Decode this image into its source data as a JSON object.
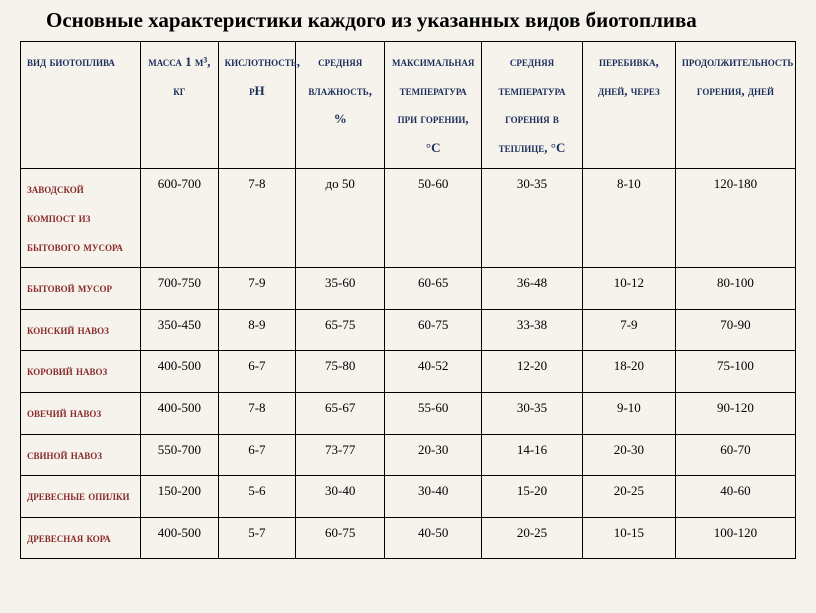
{
  "title": "Основные характеристики каждого из указанных видов биотоплива",
  "columns": [
    "вид биотоплива",
    "масса 1 м³, кг",
    "кислотность, pH",
    "средняя влажность, %",
    "максимальная температура при горении, °C",
    "средняя температура горения в теплице, °C",
    "перебивка, дней, через",
    "продолжительность горения, дней"
  ],
  "rows": [
    {
      "label": "заводской компост из бытового мусора",
      "cells": [
        "600-700",
        "7-8",
        "до 50",
        "50-60",
        "30-35",
        "8-10",
        "120-180"
      ]
    },
    {
      "label": "бытовой мусор",
      "cells": [
        "700-750",
        "7-9",
        "35-60",
        "60-65",
        "36-48",
        "10-12",
        "80-100"
      ]
    },
    {
      "label": "конский навоз",
      "cells": [
        "350-450",
        "8-9",
        "65-75",
        "60-75",
        "33-38",
        "7-9",
        "70-90"
      ]
    },
    {
      "label": "коровий навоз",
      "cells": [
        "400-500",
        "6-7",
        "75-80",
        "40-52",
        "12-20",
        "18-20",
        "75-100"
      ]
    },
    {
      "label": "овечий навоз",
      "cells": [
        "400-500",
        "7-8",
        "65-67",
        "55-60",
        "30-35",
        "9-10",
        "90-120"
      ]
    },
    {
      "label": "свиной навоз",
      "cells": [
        "550-700",
        "6-7",
        "73-77",
        "20-30",
        "14-16",
        "20-30",
        "60-70"
      ]
    },
    {
      "label": "древесные опилки",
      "cells": [
        "150-200",
        "5-6",
        "30-40",
        "30-40",
        "15-20",
        "20-25",
        "40-60"
      ]
    },
    {
      "label": "древесная кора",
      "cells": [
        "400-500",
        "5-7",
        "60-75",
        "40-50",
        "20-25",
        "10-15",
        "100-120"
      ]
    }
  ],
  "style": {
    "background": "#f6f3ed",
    "header_text_color": "#1a2e5a",
    "row_label_color": "#8a2a2a",
    "border_color": "#000000"
  }
}
